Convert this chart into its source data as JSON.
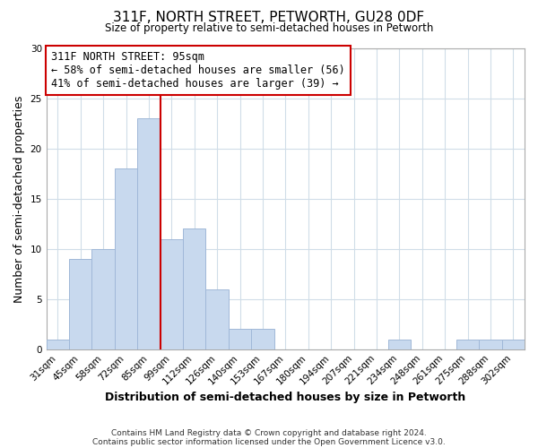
{
  "title": "311F, NORTH STREET, PETWORTH, GU28 0DF",
  "subtitle": "Size of property relative to semi-detached houses in Petworth",
  "bar_labels": [
    "31sqm",
    "45sqm",
    "58sqm",
    "72sqm",
    "85sqm",
    "99sqm",
    "112sqm",
    "126sqm",
    "140sqm",
    "153sqm",
    "167sqm",
    "180sqm",
    "194sqm",
    "207sqm",
    "221sqm",
    "234sqm",
    "248sqm",
    "261sqm",
    "275sqm",
    "288sqm",
    "302sqm"
  ],
  "bar_values": [
    1,
    9,
    10,
    18,
    23,
    11,
    12,
    6,
    2,
    2,
    0,
    0,
    0,
    0,
    0,
    1,
    0,
    0,
    1,
    1,
    1
  ],
  "bar_color": "#c8d9ee",
  "bar_edge_color": "#a0b8d8",
  "marker_bin_index": 4,
  "marker_label": "311F NORTH STREET: 95sqm",
  "annotation_line1": "← 58% of semi-detached houses are smaller (56)",
  "annotation_line2": "41% of semi-detached houses are larger (39) →",
  "marker_color": "#cc0000",
  "xlabel": "Distribution of semi-detached houses by size in Petworth",
  "ylabel": "Number of semi-detached properties",
  "ylim": [
    0,
    30
  ],
  "yticks": [
    0,
    5,
    10,
    15,
    20,
    25,
    30
  ],
  "footnote1": "Contains HM Land Registry data © Crown copyright and database right 2024.",
  "footnote2": "Contains public sector information licensed under the Open Government Licence v3.0.",
  "background_color": "#ffffff",
  "grid_color": "#d0dde8"
}
